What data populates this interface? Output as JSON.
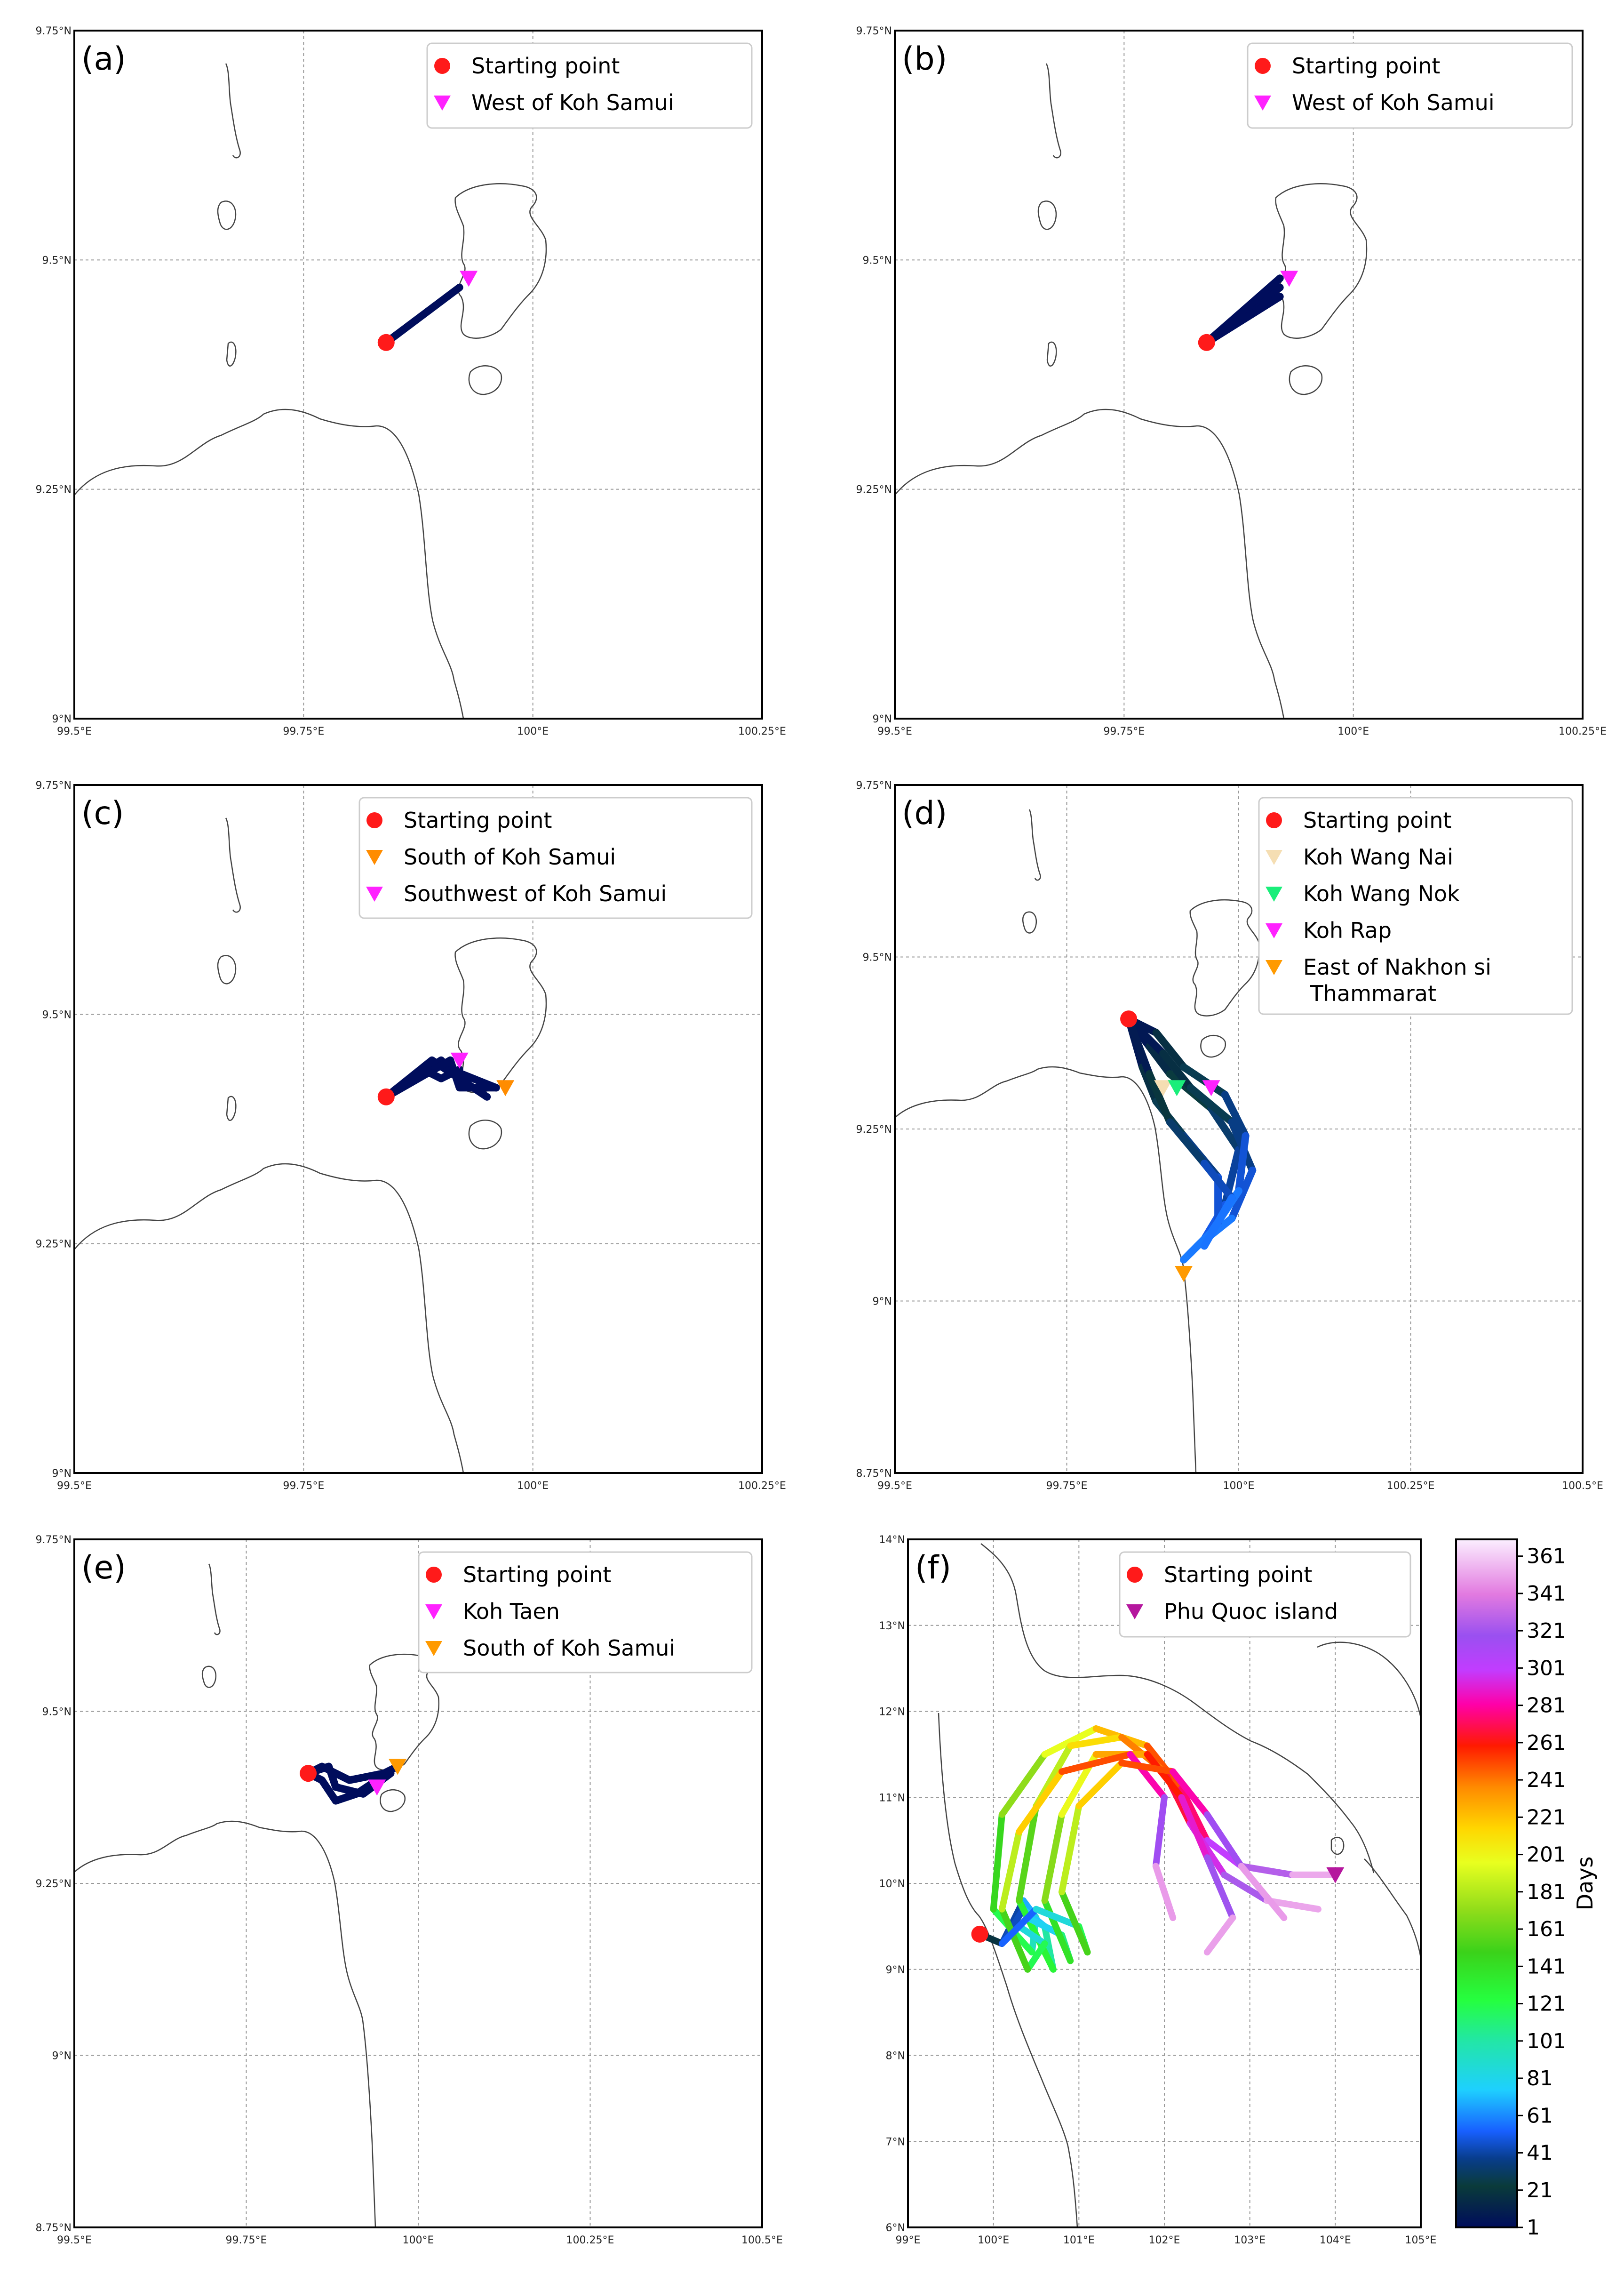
{
  "figure": {
    "colorbar": {
      "label": "Days",
      "ticks": [
        1,
        21,
        41,
        61,
        81,
        101,
        121,
        141,
        161,
        181,
        201,
        221,
        241,
        261,
        281,
        301,
        321,
        341,
        361
      ],
      "range": [
        1,
        370
      ],
      "colormap": "gist_ncar"
    }
  },
  "chart_data": [
    {
      "type": "line",
      "panel": "(a)",
      "xlim": [
        99.5,
        100.25
      ],
      "ylim": [
        9.0,
        9.75
      ],
      "x_ticks": [
        "99.5°E",
        "99.75°E",
        "100°E",
        "100.25°E"
      ],
      "y_ticks": [
        "9°N",
        "9.25°N",
        "9.5°N",
        "9.75°N"
      ],
      "legend": [
        {
          "label": "Starting point",
          "marker": "circle",
          "color": "#ff1a1a"
        },
        {
          "label": "West of Koh Samui",
          "marker": "triangle-down",
          "color": "#ff22ff"
        }
      ],
      "trajectory_color": "#000d5c",
      "trajectories": [
        [
          [
            99.84,
            9.41
          ],
          [
            99.92,
            9.47
          ]
        ]
      ],
      "start": [
        99.84,
        9.41
      ],
      "endpoints": [
        [
          99.93,
          9.48
        ]
      ]
    },
    {
      "type": "line",
      "panel": "(b)",
      "xlim": [
        99.5,
        100.25
      ],
      "ylim": [
        9.0,
        9.75
      ],
      "x_ticks": [
        "99.5°E",
        "99.75°E",
        "100°E",
        "100.25°E"
      ],
      "y_ticks": [
        "9°N",
        "9.25°N",
        "9.5°N",
        "9.75°N"
      ],
      "legend": [
        {
          "label": "Starting point",
          "marker": "circle",
          "color": "#ff1a1a"
        },
        {
          "label": "West of Koh Samui",
          "marker": "triangle-down",
          "color": "#ff22ff"
        }
      ],
      "trajectory_color": "#000d5c",
      "trajectories": [
        [
          [
            99.84,
            9.41
          ],
          [
            99.92,
            9.47
          ]
        ],
        [
          [
            99.84,
            9.41
          ],
          [
            99.92,
            9.46
          ]
        ],
        [
          [
            99.84,
            9.41
          ],
          [
            99.92,
            9.48
          ]
        ]
      ],
      "start": [
        99.84,
        9.41
      ],
      "endpoints": [
        [
          99.93,
          9.48
        ]
      ]
    },
    {
      "type": "line",
      "panel": "(c)",
      "xlim": [
        99.5,
        100.25
      ],
      "ylim": [
        9.0,
        9.75
      ],
      "x_ticks": [
        "99.5°E",
        "99.75°E",
        "100°E",
        "100.25°E"
      ],
      "y_ticks": [
        "9°N",
        "9.25°N",
        "9.5°N",
        "9.75°N"
      ],
      "legend": [
        {
          "label": "Starting point",
          "marker": "circle",
          "color": "#ff1a1a"
        },
        {
          "label": "South of Koh Samui",
          "marker": "triangle-down",
          "color": "#ff8c00"
        },
        {
          "label": "Southwest of Koh Samui",
          "marker": "triangle-down",
          "color": "#ff22ff"
        }
      ],
      "trajectory_color": "#000d5c",
      "trajectories": [
        [
          [
            99.84,
            9.41
          ],
          [
            99.9,
            9.45
          ],
          [
            99.91,
            9.44
          ],
          [
            99.96,
            9.42
          ]
        ],
        [
          [
            99.84,
            9.41
          ],
          [
            99.89,
            9.45
          ],
          [
            99.92,
            9.43
          ],
          [
            99.95,
            9.41
          ]
        ],
        [
          [
            99.84,
            9.41
          ],
          [
            99.91,
            9.45
          ],
          [
            99.92,
            9.42
          ],
          [
            99.96,
            9.42
          ]
        ],
        [
          [
            99.84,
            9.41
          ],
          [
            99.88,
            9.44
          ],
          [
            99.9,
            9.43
          ],
          [
            99.92,
            9.44
          ]
        ]
      ],
      "start": [
        99.84,
        9.41
      ],
      "endpoints": [
        [
          99.97,
          9.42
        ],
        [
          99.92,
          9.45
        ]
      ]
    },
    {
      "type": "line",
      "panel": "(d)",
      "xlim": [
        99.5,
        100.5
      ],
      "ylim": [
        8.75,
        9.75
      ],
      "x_ticks": [
        "99.5°E",
        "99.75°E",
        "100°E",
        "100.25°E",
        "100.5°E"
      ],
      "y_ticks": [
        "8.75°N",
        "9°N",
        "9.25°N",
        "9.5°N",
        "9.75°N"
      ],
      "legend": [
        {
          "label": "Starting point",
          "marker": "circle",
          "color": "#ff1a1a"
        },
        {
          "label": "Koh Wang Nai",
          "marker": "triangle-down",
          "color": "#f5deb3"
        },
        {
          "label": "Koh Wang Nok",
          "marker": "triangle-down",
          "color": "#1aee7a"
        },
        {
          "label": "Koh Rap",
          "marker": "triangle-down",
          "color": "#ff22ff"
        },
        {
          "label": "East of Nakhon si\n Thammarat",
          "marker": "triangle-down",
          "color": "#ff9a00"
        }
      ],
      "trajectory_day_range": [
        1,
        60
      ],
      "trajectories": [
        [
          [
            99.84,
            9.41
          ],
          [
            99.87,
            9.37
          ],
          [
            99.9,
            9.33
          ],
          [
            99.96,
            9.28
          ],
          [
            100.0,
            9.22
          ],
          [
            99.98,
            9.14
          ],
          [
            99.95,
            9.09
          ],
          [
            99.92,
            9.06
          ]
        ],
        [
          [
            99.84,
            9.41
          ],
          [
            99.89,
            9.36
          ],
          [
            99.93,
            9.31
          ],
          [
            99.99,
            9.26
          ],
          [
            100.02,
            9.19
          ],
          [
            99.99,
            9.12
          ],
          [
            99.94,
            9.08
          ]
        ],
        [
          [
            99.84,
            9.41
          ],
          [
            99.86,
            9.34
          ],
          [
            99.88,
            9.29
          ],
          [
            99.92,
            9.24
          ],
          [
            99.97,
            9.18
          ],
          [
            99.97,
            9.11
          ],
          [
            99.93,
            9.07
          ]
        ],
        [
          [
            99.84,
            9.41
          ],
          [
            99.88,
            9.39
          ],
          [
            99.92,
            9.34
          ],
          [
            99.98,
            9.3
          ],
          [
            100.01,
            9.24
          ],
          [
            100.0,
            9.16
          ],
          [
            99.96,
            9.1
          ]
        ],
        [
          [
            99.84,
            9.41
          ],
          [
            99.87,
            9.33
          ],
          [
            99.9,
            9.26
          ],
          [
            99.95,
            9.2
          ],
          [
            99.99,
            9.15
          ],
          [
            99.95,
            9.08
          ]
        ]
      ],
      "start": [
        99.84,
        9.41
      ],
      "endpoints": [
        [
          99.89,
          9.31
        ],
        [
          99.91,
          9.31
        ],
        [
          99.96,
          9.31
        ],
        [
          99.92,
          9.04
        ]
      ]
    },
    {
      "type": "line",
      "panel": "(e)",
      "xlim": [
        99.5,
        100.5
      ],
      "ylim": [
        8.75,
        9.75
      ],
      "x_ticks": [
        "99.5°E",
        "99.75°E",
        "100°E",
        "100.25°E",
        "100.5°E"
      ],
      "y_ticks": [
        "8.75°N",
        "9°N",
        "9.25°N",
        "9.5°N",
        "9.75°N"
      ],
      "legend": [
        {
          "label": "Starting point",
          "marker": "circle",
          "color": "#ff1a1a"
        },
        {
          "label": "Koh Taen",
          "marker": "triangle-down",
          "color": "#ff22ff"
        },
        {
          "label": "South of Koh Samui",
          "marker": "triangle-down",
          "color": "#ff9a00"
        }
      ],
      "trajectory_color": "#000d5c",
      "trajectories": [
        [
          [
            99.84,
            9.41
          ],
          [
            99.87,
            9.42
          ],
          [
            99.88,
            9.39
          ],
          [
            99.92,
            9.38
          ],
          [
            99.96,
            9.41
          ]
        ],
        [
          [
            99.84,
            9.41
          ],
          [
            99.86,
            9.4
          ],
          [
            99.88,
            9.37
          ],
          [
            99.91,
            9.38
          ],
          [
            99.94,
            9.4
          ]
        ],
        [
          [
            99.84,
            9.41
          ],
          [
            99.86,
            9.42
          ],
          [
            99.9,
            9.4
          ],
          [
            99.95,
            9.41
          ],
          [
            99.97,
            9.42
          ]
        ]
      ],
      "start": [
        99.84,
        9.41
      ],
      "endpoints": [
        [
          99.94,
          9.39
        ],
        [
          99.97,
          9.42
        ]
      ]
    },
    {
      "type": "line",
      "panel": "(f)",
      "xlim": [
        99.0,
        105.0
      ],
      "ylim": [
        6.0,
        14.0
      ],
      "x_ticks": [
        "99°E",
        "100°E",
        "101°E",
        "102°E",
        "103°E",
        "104°E",
        "105°E"
      ],
      "y_ticks": [
        "6°N",
        "7°N",
        "8°N",
        "9°N",
        "10°N",
        "11°N",
        "12°N",
        "13°N",
        "14°N"
      ],
      "legend": [
        {
          "label": "Starting point",
          "marker": "circle",
          "color": "#ff1a1a"
        },
        {
          "label": "Phu Quoc island",
          "marker": "triangle-down",
          "color": "#b5179e"
        }
      ],
      "trajectory_day_range": [
        1,
        365
      ],
      "trajectories": [
        [
          [
            99.84,
            9.41
          ],
          [
            100.1,
            9.3
          ],
          [
            100.35,
            9.8
          ],
          [
            100.5,
            9.6
          ],
          [
            100.45,
            9.2
          ],
          [
            100.0,
            9.7
          ],
          [
            100.1,
            10.8
          ],
          [
            100.6,
            11.5
          ],
          [
            101.2,
            11.8
          ],
          [
            101.8,
            11.6
          ],
          [
            102.2,
            11.1
          ],
          [
            102.5,
            10.5
          ],
          [
            102.9,
            10.2
          ],
          [
            103.5,
            10.1
          ],
          [
            104.0,
            10.1
          ]
        ],
        [
          [
            99.84,
            9.41
          ],
          [
            100.1,
            9.3
          ],
          [
            100.35,
            9.7
          ],
          [
            100.6,
            9.5
          ],
          [
            100.7,
            9.0
          ],
          [
            100.3,
            9.8
          ],
          [
            100.5,
            10.9
          ],
          [
            100.9,
            11.6
          ],
          [
            101.5,
            11.7
          ],
          [
            102.0,
            11.3
          ],
          [
            102.3,
            10.7
          ],
          [
            102.7,
            10.1
          ],
          [
            103.2,
            9.8
          ],
          [
            103.8,
            9.7
          ]
        ],
        [
          [
            99.84,
            9.41
          ],
          [
            100.1,
            9.3
          ],
          [
            100.4,
            9.6
          ],
          [
            100.8,
            9.4
          ],
          [
            100.9,
            9.1
          ],
          [
            100.6,
            9.8
          ],
          [
            100.8,
            10.8
          ],
          [
            101.2,
            11.5
          ],
          [
            101.8,
            11.5
          ],
          [
            102.2,
            11.0
          ],
          [
            102.5,
            10.3
          ],
          [
            102.8,
            9.6
          ],
          [
            102.5,
            9.2
          ]
        ],
        [
          [
            99.84,
            9.41
          ],
          [
            100.1,
            9.3
          ],
          [
            100.3,
            9.5
          ],
          [
            100.6,
            9.3
          ],
          [
            100.4,
            9.0
          ],
          [
            100.1,
            9.7
          ],
          [
            100.3,
            10.6
          ],
          [
            100.8,
            11.3
          ],
          [
            101.6,
            11.5
          ],
          [
            102.0,
            11.0
          ],
          [
            101.9,
            10.2
          ],
          [
            102.1,
            9.6
          ]
        ],
        [
          [
            99.84,
            9.41
          ],
          [
            100.1,
            9.3
          ],
          [
            100.5,
            9.7
          ],
          [
            101.0,
            9.5
          ],
          [
            101.1,
            9.2
          ],
          [
            100.8,
            9.9
          ],
          [
            101.0,
            10.9
          ],
          [
            101.5,
            11.4
          ],
          [
            102.1,
            11.3
          ],
          [
            102.5,
            10.8
          ],
          [
            102.9,
            10.2
          ],
          [
            103.4,
            9.6
          ]
        ]
      ],
      "start": [
        99.84,
        9.41
      ],
      "endpoints": [
        [
          104.0,
          10.1
        ]
      ]
    }
  ]
}
